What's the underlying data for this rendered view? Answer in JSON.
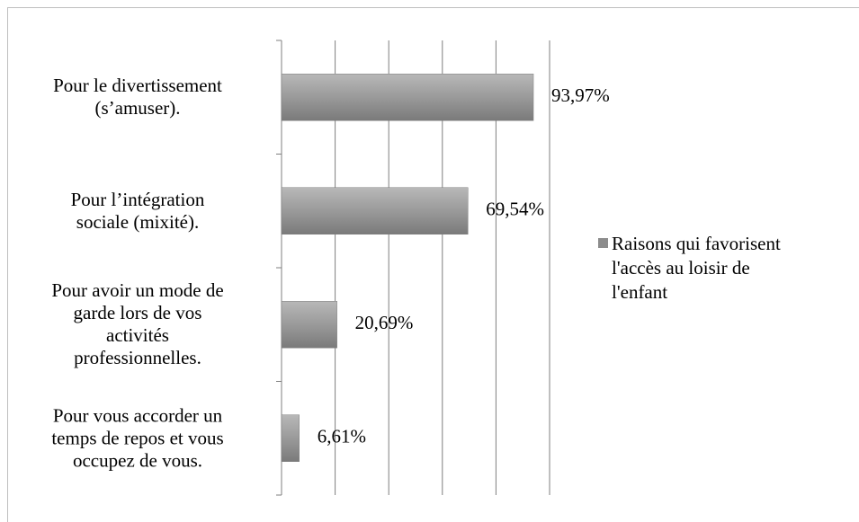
{
  "chart_data": {
    "type": "bar",
    "orientation": "horizontal",
    "categories": [
      "Pour le divertissement\n(s’amuser).",
      "Pour l’intégration\nsociale (mixité).",
      "Pour avoir un mode de\ngarde lors de vos\nactivités\nprofessionnelles.",
      "Pour vous accorder un\ntemps de repos et vous\noccupez de vous."
    ],
    "series": [
      {
        "name": "Raisons qui favorisent\nl'accès au loisir de\nl'enfant",
        "color": "#8c8c8c",
        "values": [
          93.97,
          69.54,
          20.69,
          6.61
        ],
        "value_labels": [
          "93,97%",
          "69,54%",
          "20,69%",
          "6,61%"
        ]
      }
    ],
    "xlim": [
      0,
      100
    ],
    "xticks": [
      0,
      20,
      40,
      60,
      80,
      100
    ],
    "grid": true,
    "legend": "right"
  }
}
